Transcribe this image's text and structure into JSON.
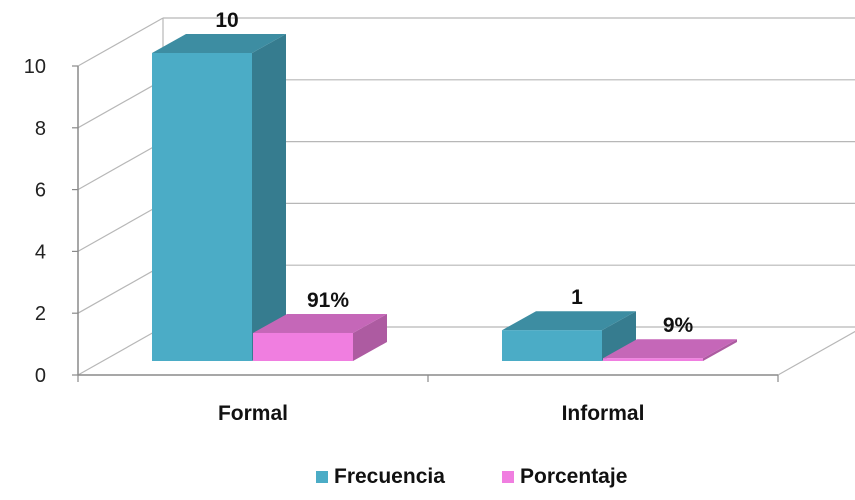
{
  "chart_data": {
    "type": "bar",
    "categories": [
      "Formal",
      "Informal"
    ],
    "series": [
      {
        "name": "Frecuencia",
        "values": [
          10,
          1
        ],
        "labels": [
          "10",
          "1"
        ],
        "color": "#4bacc6"
      },
      {
        "name": "Porcentaje",
        "values": [
          0.91,
          0.09
        ],
        "labels": [
          "91%",
          "9%"
        ],
        "color": "#f07ee0"
      }
    ],
    "y_ticks": [
      "0",
      "2",
      "4",
      "6",
      "8",
      "10"
    ],
    "ylim": [
      0,
      10
    ],
    "grid": true,
    "three_d": true,
    "legend_position": "bottom"
  }
}
